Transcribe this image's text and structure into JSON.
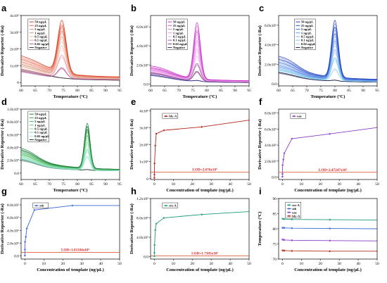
{
  "chart_data": [
    {
      "id": "a",
      "type": "line",
      "letter": "a",
      "xlabel": "Temperature (ºC)",
      "ylabel": "Derivative Reporter (-Ra)",
      "xlim": [
        60,
        95
      ],
      "ylim": [
        -0.2,
        4.0
      ],
      "yscale": 1000000,
      "xticks": [
        60,
        65,
        70,
        75,
        80,
        85,
        90,
        95
      ],
      "yticks": [
        {
          "v": 0.0,
          "label": "0"
        },
        {
          "v": 1.0,
          "label": "1x10⁶"
        },
        {
          "v": 2.0,
          "label": "2x10⁶"
        },
        {
          "v": 3.0,
          "label": "3x10⁶"
        },
        {
          "v": 4.0,
          "label": "4x10⁶"
        }
      ],
      "peak_x": 74.5,
      "peak_w": 1.5,
      "bump_x": 63,
      "bump_w": 6,
      "series": [
        {
          "name": "50 ng/μL",
          "color": "#d94225",
          "base": 0.95,
          "tail": 0.3,
          "peak": 3.1,
          "bump": 0.4
        },
        {
          "name": "25 ng/μL",
          "color": "#e96a52",
          "base": 0.85,
          "tail": 0.28,
          "peak": 2.85,
          "bump": 0.3
        },
        {
          "name": "5 ng/μL",
          "color": "#f2917f",
          "base": 0.75,
          "tail": 0.25,
          "peak": 2.6,
          "bump": 0.25
        },
        {
          "name": "1 ng/μL",
          "color": "#c9a07a",
          "base": 0.7,
          "tail": 0.22,
          "peak": 2.3,
          "bump": 0.2
        },
        {
          "name": "0.5 ng/μL",
          "color": "#f7b9ad",
          "base": 0.6,
          "tail": 0.2,
          "peak": 1.8,
          "bump": 0.2
        },
        {
          "name": "0.1 ng/μL",
          "color": "#e39aa8",
          "base": 0.5,
          "tail": 0.18,
          "peak": 1.3,
          "bump": 0.15
        },
        {
          "name": "0.02 ng/μL",
          "color": "#b5579a",
          "base": 0.45,
          "tail": 0.15,
          "peak": 0.6,
          "bump": 0.1
        },
        {
          "name": "Negative",
          "color": "#333333",
          "base": 0.5,
          "tail": 0.12,
          "peak": 0.0,
          "bump": 0.2
        }
      ]
    },
    {
      "id": "b",
      "type": "line",
      "letter": "b",
      "xlabel": "Temperature (ºC)",
      "ylabel": "Derivative Reporter (-Ra)",
      "xlim": [
        60,
        95
      ],
      "ylim": [
        -0.2,
        7.2
      ],
      "yscale": 100000,
      "xticks": [
        60,
        65,
        70,
        75,
        80,
        85,
        90,
        95
      ],
      "yticks": [
        {
          "v": 0.0,
          "label": "0.0"
        },
        {
          "v": 2.0,
          "label": "2.0x10⁵"
        },
        {
          "v": 4.0,
          "label": "4.0x10⁵"
        },
        {
          "v": 6.0,
          "label": "6.0x10⁵"
        }
      ],
      "peak_x": 76.5,
      "peak_w": 1.2,
      "bump_x": 63,
      "bump_w": 5,
      "series": [
        {
          "name": "50 ng/μL",
          "color": "#cc33cc",
          "base": 1.1,
          "tail": 0.3,
          "peak": 5.9,
          "bump": 0.6
        },
        {
          "name": "25 ng/μL",
          "color": "#d65cd6",
          "base": 1.0,
          "tail": 0.28,
          "peak": 5.0,
          "bump": 0.5
        },
        {
          "name": "5 ng/μL",
          "color": "#e07fe0",
          "base": 0.95,
          "tail": 0.25,
          "peak": 4.1,
          "bump": 0.5
        },
        {
          "name": "1 ng/μL",
          "color": "#e89ce8",
          "base": 0.9,
          "tail": 0.22,
          "peak": 3.3,
          "bump": 0.4
        },
        {
          "name": "0.5 ng/μL",
          "color": "#efb6ef",
          "base": 0.85,
          "tail": 0.2,
          "peak": 2.6,
          "bump": 0.4
        },
        {
          "name": "0.1 ng/μL",
          "color": "#a35aa3",
          "base": 0.8,
          "tail": 0.18,
          "peak": 1.8,
          "bump": 0.3
        },
        {
          "name": "0.02 ng/μL",
          "color": "#8c3d8c",
          "base": 0.8,
          "tail": 0.15,
          "peak": 1.0,
          "bump": 0.3
        },
        {
          "name": "Negative",
          "color": "#2b2b8c",
          "base": 0.7,
          "tail": 0.12,
          "peak": 0.1,
          "bump": 0.2
        }
      ]
    },
    {
      "id": "c",
      "type": "line",
      "letter": "c",
      "xlabel": "Temperature (ºC)",
      "ylabel": "Derivative Reporter (-Ra)",
      "xlim": [
        60,
        95
      ],
      "ylim": [
        -0.2,
        7.0
      ],
      "yscale": 100000,
      "xticks": [
        60,
        65,
        70,
        75,
        80,
        85,
        90,
        95
      ],
      "yticks": [
        {
          "v": 0.0,
          "label": "0.0"
        },
        {
          "v": 2.0,
          "label": "2.0x10⁵"
        },
        {
          "v": 4.0,
          "label": "4.0x10⁵"
        },
        {
          "v": 6.0,
          "label": "6.0x10⁵"
        }
      ],
      "peak_x": 80,
      "peak_w": 1.2,
      "bump_x": 63,
      "bump_w": 4,
      "series": [
        {
          "name": "50 ng/μL",
          "color": "#1f3fbf",
          "base": 1.9,
          "tail": 0.4,
          "peak": 5.8,
          "bump": 0.7
        },
        {
          "name": "25 ng/μL",
          "color": "#2f5ad1",
          "base": 1.7,
          "tail": 0.35,
          "peak": 5.2,
          "bump": 0.6
        },
        {
          "name": "5 ng/μL",
          "color": "#4a7de0",
          "base": 1.5,
          "tail": 0.3,
          "peak": 4.6,
          "bump": 0.5
        },
        {
          "name": "1 ng/μL",
          "color": "#6b99e8",
          "base": 1.3,
          "tail": 0.28,
          "peak": 3.9,
          "bump": 0.4
        },
        {
          "name": "0.5 ng/μL",
          "color": "#8ab4f0",
          "base": 1.2,
          "tail": 0.25,
          "peak": 3.1,
          "bump": 0.4
        },
        {
          "name": "0.1 ng/μL",
          "color": "#6ec7e8",
          "base": 1.1,
          "tail": 0.22,
          "peak": 2.3,
          "bump": 0.3
        },
        {
          "name": "0.02 ng/μL",
          "color": "#a7d8f0",
          "base": 1.0,
          "tail": 0.2,
          "peak": 1.2,
          "bump": 0.3
        },
        {
          "name": "Negative",
          "color": "#1a1a4d",
          "base": 0.9,
          "tail": 0.15,
          "peak": 0.1,
          "bump": 0.2
        }
      ]
    },
    {
      "id": "d",
      "type": "line",
      "letter": "d",
      "xlabel": "Temperature (ºC)",
      "ylabel": "Derivative Reporter (-Ra)",
      "xlim": [
        60,
        95
      ],
      "ylim": [
        -0.1,
        1.0
      ],
      "yscale": 1000000,
      "xticks": [
        60,
        65,
        70,
        75,
        80,
        85,
        90,
        95
      ],
      "yticks": [
        {
          "v": 0.0,
          "label": "0.0"
        },
        {
          "v": 0.2,
          "label": "2.0x10⁵"
        },
        {
          "v": 0.4,
          "label": "4.0x10⁵"
        },
        {
          "v": 0.6,
          "label": "6.0x10⁵"
        },
        {
          "v": 0.8,
          "label": "8.0x10⁵"
        },
        {
          "v": 1.0,
          "label": "1.0x10⁶"
        }
      ],
      "peak_x": 83.5,
      "peak_w": 1.0,
      "bump_x": 62,
      "bump_w": 4,
      "series": [
        {
          "name": "50 ng/μL",
          "color": "#1b7a3a",
          "base": 0.25,
          "tail": 0.05,
          "peak": 0.7,
          "bump": 0.1
        },
        {
          "name": "25 ng/μL",
          "color": "#2e9a4d",
          "base": 0.23,
          "tail": 0.05,
          "peak": 0.65,
          "bump": 0.09
        },
        {
          "name": "5 ng/μL",
          "color": "#49b862",
          "base": 0.21,
          "tail": 0.045,
          "peak": 0.6,
          "bump": 0.08
        },
        {
          "name": "1 ng/μL",
          "color": "#6ccd7f",
          "base": 0.2,
          "tail": 0.04,
          "peak": 0.52,
          "bump": 0.07
        },
        {
          "name": "0.5 ng/μL",
          "color": "#8fdb9c",
          "base": 0.18,
          "tail": 0.04,
          "peak": 0.42,
          "bump": 0.07
        },
        {
          "name": "0.1 ng/μL",
          "color": "#6fd8c0",
          "base": 0.16,
          "tail": 0.035,
          "peak": 0.32,
          "bump": 0.06
        },
        {
          "name": "0.02 ng/μL",
          "color": "#9ee6d6",
          "base": 0.15,
          "tail": 0.03,
          "peak": 0.22,
          "bump": 0.05
        },
        {
          "name": "Negative",
          "color": "#0d3d1d",
          "base": 0.14,
          "tail": 0.03,
          "peak": 0.01,
          "bump": 0.05
        }
      ]
    },
    {
      "id": "e",
      "type": "line",
      "letter": "e",
      "xlabel": "Concentration of template (ng/μL)",
      "ylabel": "Derivative Reporter (-Ra)",
      "xlim": [
        -2,
        50
      ],
      "ylim": [
        -0.05,
        4.1
      ],
      "xticks": [
        0,
        10,
        20,
        30,
        40,
        50
      ],
      "yticks": [
        {
          "v": 0,
          "label": "0"
        },
        {
          "v": 1,
          "label": "1x10⁶"
        },
        {
          "v": 2,
          "label": "2x10⁶"
        },
        {
          "v": 3,
          "label": "3x10⁶"
        },
        {
          "v": 4,
          "label": "4x10⁶"
        }
      ],
      "color": "#b02a1a",
      "series": [
        {
          "name": "hly-A",
          "x": [
            0,
            0.02,
            0.1,
            0.5,
            1,
            5,
            25,
            50
          ],
          "y": [
            0.05,
            0.25,
            0.9,
            1.95,
            2.65,
            2.85,
            3.05,
            3.45
          ]
        }
      ],
      "lod": {
        "y": 0.38,
        "label": "LOD=2.676x10⁵"
      }
    },
    {
      "id": "f",
      "type": "line",
      "letter": "f",
      "xlabel": "Concentration of template (ng/μL)",
      "ylabel": "Derivative Reporter (-Ra)",
      "xlim": [
        -2,
        50
      ],
      "ylim": [
        -0.3,
        8.5
      ],
      "xticks": [
        0,
        10,
        20,
        30,
        40,
        50
      ],
      "yticks": [
        {
          "v": 0,
          "label": "0.0"
        },
        {
          "v": 2,
          "label": "2.0x10⁵"
        },
        {
          "v": 4,
          "label": "4.0x10⁵"
        },
        {
          "v": 6,
          "label": "6.0x10⁵"
        },
        {
          "v": 8,
          "label": "8.0x10⁵"
        }
      ],
      "color": "#8a3fc8",
      "series": [
        {
          "name": "eae",
          "x": [
            0,
            0.02,
            0.1,
            0.5,
            1,
            5,
            25,
            50
          ],
          "y": [
            0.05,
            0.4,
            1.5,
            2.2,
            3.0,
            4.8,
            5.4,
            6.2
          ]
        }
      ],
      "lod": {
        "y": 0.6,
        "label": "LOD=2.47247x10⁵"
      }
    },
    {
      "id": "g",
      "type": "line",
      "letter": "g",
      "xlabel": "Concentration of template (ng/μL)",
      "ylabel": "Derivative Reporter (-Ra)",
      "xlim": [
        -2,
        50
      ],
      "ylim": [
        -0.5,
        9.0
      ],
      "xticks": [
        0,
        10,
        20,
        30,
        40,
        50
      ],
      "yticks": [
        {
          "v": 0,
          "label": "0.0"
        },
        {
          "v": 2,
          "label": "2.0x10⁵"
        },
        {
          "v": 4,
          "label": "4.0x10⁵"
        },
        {
          "v": 6,
          "label": "6.0x10⁵"
        },
        {
          "v": 8,
          "label": "8.0x10⁵"
        }
      ],
      "color": "#3a68d6",
      "series": [
        {
          "name": "stb",
          "x": [
            0,
            0.02,
            0.1,
            0.5,
            1,
            5,
            25,
            50
          ],
          "y": [
            0.05,
            1.0,
            2.2,
            3.0,
            4.3,
            7.2,
            7.9,
            7.9
          ]
        }
      ],
      "lod": {
        "y": 0.55,
        "label": "LOD=1.81184x10⁵"
      }
    },
    {
      "id": "h",
      "type": "line",
      "letter": "h",
      "xlabel": "Concentration of template (ng/μL)",
      "ylabel": "Derivative Reporter (-Ra)",
      "xlim": [
        -2,
        50
      ],
      "ylim": [
        -0.05,
        1.2
      ],
      "xticks": [
        0,
        10,
        20,
        30,
        40,
        50
      ],
      "yticks": [
        {
          "v": 0,
          "label": "0.0"
        },
        {
          "v": 0.4,
          "label": "4.0x10⁵"
        },
        {
          "v": 0.8,
          "label": "8.0x10⁵"
        },
        {
          "v": 1.2,
          "label": "1.2x10⁶"
        }
      ],
      "color": "#1f9a7a",
      "series": [
        {
          "name": "stx-A",
          "x": [
            0,
            0.02,
            0.1,
            0.5,
            1,
            5,
            25,
            50
          ],
          "y": [
            0.01,
            0.08,
            0.24,
            0.55,
            0.68,
            0.8,
            0.87,
            0.93
          ]
        }
      ],
      "lod": {
        "y": 0.015,
        "label": "LOD=1.7305x10⁵"
      }
    },
    {
      "id": "i",
      "type": "line",
      "letter": "i",
      "xlabel": "Concentration of template (ng/μL)",
      "ylabel": "Temperature (ºC)",
      "xlim": [
        -2,
        50
      ],
      "ylim": [
        70,
        90
      ],
      "xticks": [
        0,
        10,
        20,
        30,
        40,
        50
      ],
      "yticks": [
        {
          "v": 70,
          "label": "70"
        },
        {
          "v": 75,
          "label": "75"
        },
        {
          "v": 80,
          "label": "80"
        },
        {
          "v": 85,
          "label": "85"
        },
        {
          "v": 90,
          "label": "90"
        }
      ],
      "series": [
        {
          "name": "stx-A",
          "color": "#1f9a7a",
          "x": [
            0,
            0.02,
            0.1,
            0.5,
            1,
            5,
            25,
            50
          ],
          "y": [
            83.3,
            83.3,
            83.3,
            83.3,
            83.2,
            83.1,
            83.0,
            82.9
          ]
        },
        {
          "name": "stb",
          "color": "#3a68d6",
          "x": [
            0,
            0.02,
            0.1,
            0.5,
            1,
            5,
            25,
            50
          ],
          "y": [
            80.4,
            80.4,
            80.3,
            80.3,
            80.3,
            80.2,
            80.1,
            80.0
          ]
        },
        {
          "name": "eae",
          "color": "#8a3fc8",
          "x": [
            0,
            0.02,
            0.1,
            0.5,
            1,
            5,
            25,
            50
          ],
          "y": [
            76.5,
            76.5,
            76.4,
            76.4,
            76.3,
            76.2,
            76.1,
            76.0
          ]
        },
        {
          "name": "hly-A",
          "color": "#b02a1a",
          "x": [
            0,
            0.02,
            0.1,
            0.5,
            1,
            5,
            25,
            50
          ],
          "y": [
            72.9,
            72.9,
            72.8,
            72.8,
            72.8,
            72.7,
            72.6,
            72.6
          ]
        }
      ]
    }
  ]
}
